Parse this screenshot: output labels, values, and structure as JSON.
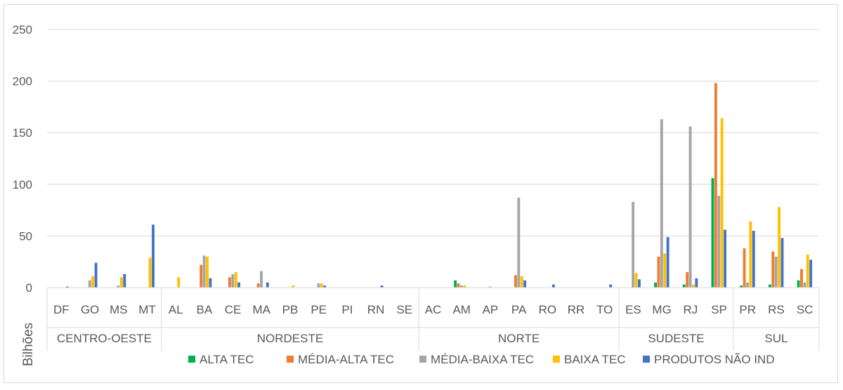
{
  "chart_data": {
    "type": "bar",
    "title": "",
    "xlabel": "",
    "ylabel": "Bilhões",
    "ylim": [
      0,
      250
    ],
    "yticks": [
      0,
      50,
      100,
      150,
      200,
      250
    ],
    "grid": true,
    "legend_position": "bottom",
    "colors": [
      "#00b050",
      "#ed7d31",
      "#a5a5a5",
      "#ffc000",
      "#4472c4"
    ],
    "groups": [
      {
        "name": "CENTRO-OESTE",
        "categories": [
          "DF",
          "GO",
          "MS",
          "MT"
        ]
      },
      {
        "name": "NORDESTE",
        "categories": [
          "AL",
          "BA",
          "CE",
          "MA",
          "PB",
          "PE",
          "PI",
          "RN",
          "SE"
        ]
      },
      {
        "name": "NORTE",
        "categories": [
          "AC",
          "AM",
          "AP",
          "PA",
          "RO",
          "RR",
          "TO"
        ]
      },
      {
        "name": "SUDESTE",
        "categories": [
          "ES",
          "MG",
          "RJ",
          "SP"
        ]
      },
      {
        "name": "SUL",
        "categories": [
          "PR",
          "RS",
          "SC"
        ]
      }
    ],
    "categories": [
      "DF",
      "GO",
      "MS",
      "MT",
      "AL",
      "BA",
      "CE",
      "MA",
      "PB",
      "PE",
      "PI",
      "RN",
      "SE",
      "AC",
      "AM",
      "AP",
      "PA",
      "RO",
      "RR",
      "TO",
      "ES",
      "MG",
      "RJ",
      "SP",
      "PR",
      "RS",
      "SC"
    ],
    "series": [
      {
        "name": "ALTA TEC",
        "values": [
          0,
          0,
          0,
          0,
          0,
          0,
          0,
          0,
          0,
          0,
          0,
          0,
          0,
          0,
          7,
          0,
          0,
          0,
          0,
          0,
          0,
          5,
          3,
          106,
          2,
          3,
          7
        ]
      },
      {
        "name": "MÉDIA-ALTA TEC",
        "values": [
          0,
          0,
          0,
          0,
          0,
          22,
          10,
          4,
          0,
          0,
          0,
          0,
          0,
          0,
          4,
          0,
          12,
          0,
          0,
          0,
          0,
          30,
          15,
          198,
          38,
          35,
          18
        ]
      },
      {
        "name": "MÉDIA-BAIXA TEC",
        "values": [
          0,
          7,
          2,
          0,
          0,
          31,
          13,
          16,
          0,
          4,
          0,
          0,
          0,
          0,
          2,
          1,
          87,
          0,
          0,
          0,
          83,
          163,
          156,
          89,
          5,
          30,
          5
        ]
      },
      {
        "name": "BAIXA TEC",
        "values": [
          0,
          11,
          10,
          29,
          10,
          30,
          15,
          0,
          2,
          4,
          0,
          0,
          0,
          0,
          2,
          0,
          11,
          0,
          0,
          0,
          14,
          33,
          3,
          164,
          64,
          78,
          32
        ]
      },
      {
        "name": "PRODUTOS NÃO IND",
        "values": [
          1,
          24,
          13,
          61,
          0,
          9,
          5,
          5,
          0,
          2,
          0,
          2,
          0,
          0,
          0,
          0,
          7,
          3,
          0,
          3,
          8,
          49,
          9,
          56,
          55,
          48,
          27
        ]
      }
    ]
  }
}
